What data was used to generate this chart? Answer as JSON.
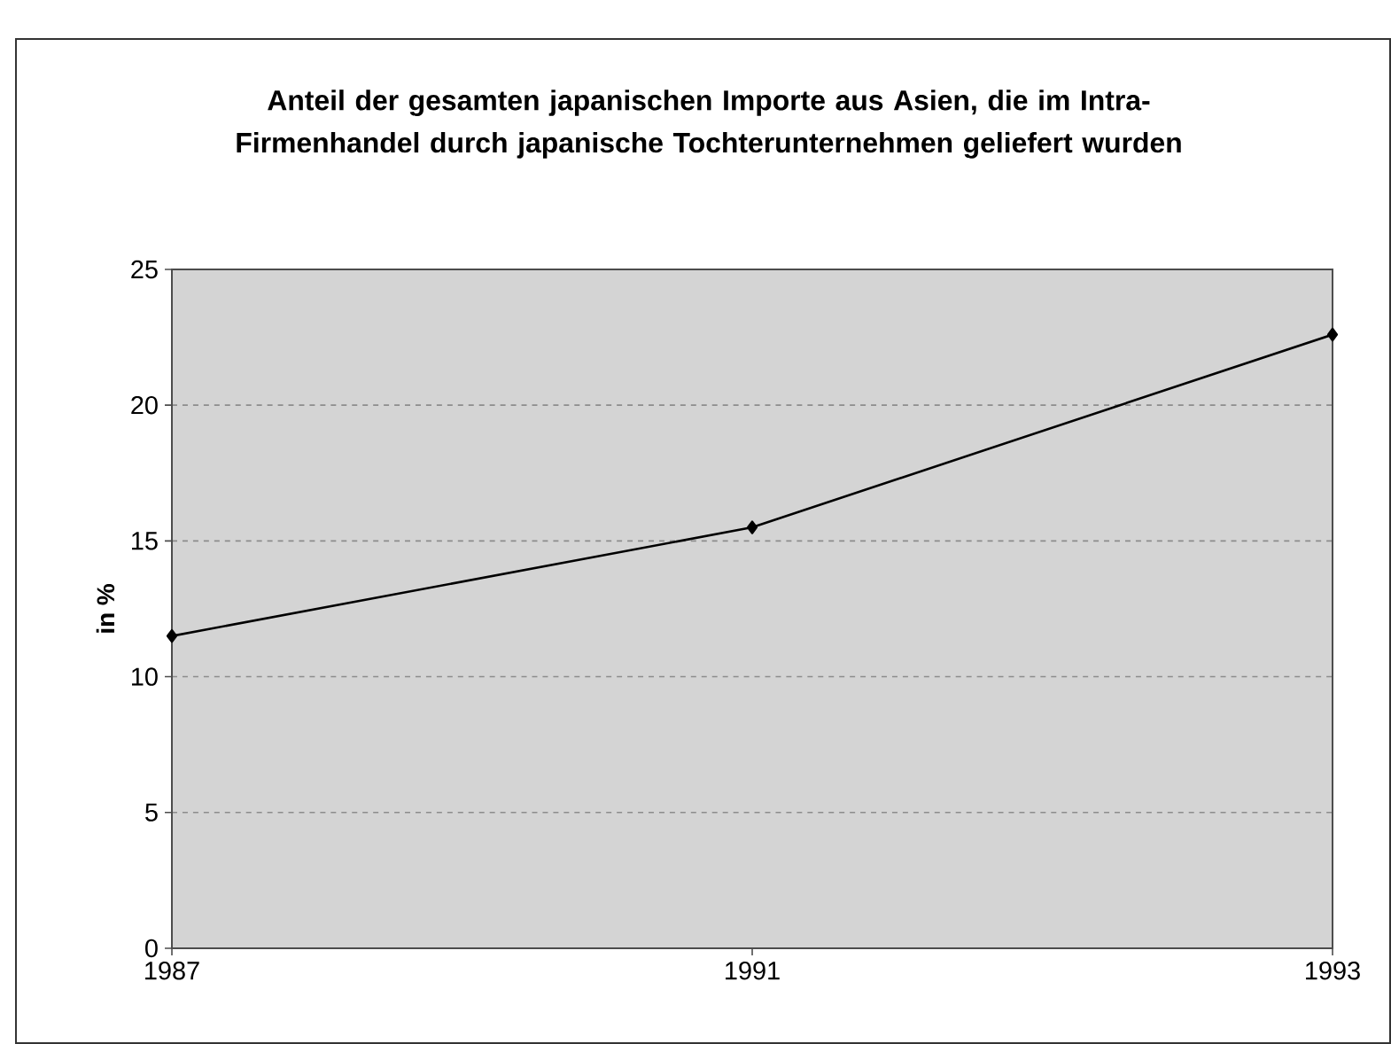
{
  "chart_data": {
    "type": "line",
    "title": "Anteil der gesamten japanischen Importe aus Asien, die im Intra-Firmenhandel durch japanische Tochterunternehmen geliefert wurden",
    "ylabel": "in %",
    "categories": [
      "1987",
      "1991",
      "1993"
    ],
    "series": [
      {
        "color": "#000000",
        "values": [
          11.5,
          15.5,
          22.6
        ]
      }
    ],
    "ylim": [
      0,
      25
    ],
    "yticks": [
      0,
      5,
      10,
      15,
      20,
      25
    ],
    "grid": "y",
    "marker": "diamond",
    "line_style": "solid"
  }
}
